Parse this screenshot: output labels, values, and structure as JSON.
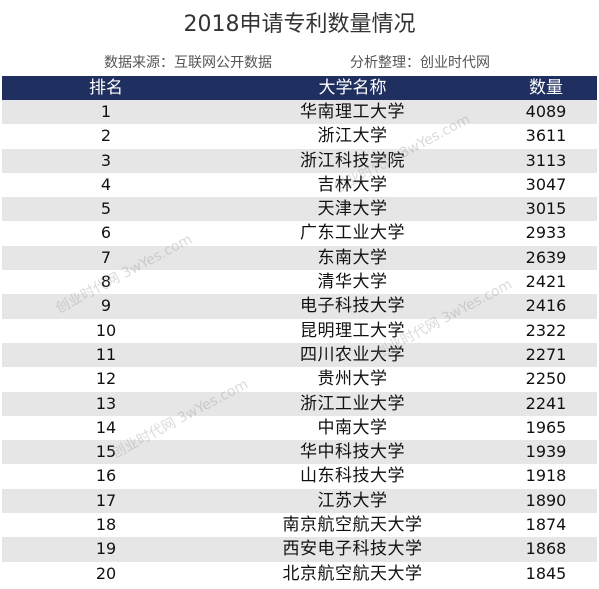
{
  "title": "2018申请专利数量情况",
  "source": "数据来源：互联网公开数据",
  "organizer": "分析整理：创业时代网",
  "watermark": "创业时代网 3wYes.com",
  "colors": {
    "header_bg": "#1f2f5f",
    "header_text": "#ffffff",
    "row_alt": "#e6e6e6"
  },
  "table": {
    "headers": [
      "排名",
      "大学名称",
      "数量"
    ],
    "rows": [
      {
        "rank": "1",
        "name": "华南理工大学",
        "count": "4089"
      },
      {
        "rank": "2",
        "name": "浙江大学",
        "count": "3611"
      },
      {
        "rank": "3",
        "name": "浙江科技学院",
        "count": "3113"
      },
      {
        "rank": "4",
        "name": "吉林大学",
        "count": "3047"
      },
      {
        "rank": "5",
        "name": "天津大学",
        "count": "3015"
      },
      {
        "rank": "6",
        "name": "广东工业大学",
        "count": "2933"
      },
      {
        "rank": "7",
        "name": "东南大学",
        "count": "2639"
      },
      {
        "rank": "8",
        "name": "清华大学",
        "count": "2421"
      },
      {
        "rank": "9",
        "name": "电子科技大学",
        "count": "2416"
      },
      {
        "rank": "10",
        "name": "昆明理工大学",
        "count": "2322"
      },
      {
        "rank": "11",
        "name": "四川农业大学",
        "count": "2271"
      },
      {
        "rank": "12",
        "name": "贵州大学",
        "count": "2250"
      },
      {
        "rank": "13",
        "name": "浙江工业大学",
        "count": "2241"
      },
      {
        "rank": "14",
        "name": "中南大学",
        "count": "1965"
      },
      {
        "rank": "15",
        "name": "华中科技大学",
        "count": "1939"
      },
      {
        "rank": "16",
        "name": "山东科技大学",
        "count": "1918"
      },
      {
        "rank": "17",
        "name": "江苏大学",
        "count": "1890"
      },
      {
        "rank": "18",
        "name": "南京航空航天大学",
        "count": "1874"
      },
      {
        "rank": "19",
        "name": "西安电子科技大学",
        "count": "1868"
      },
      {
        "rank": "20",
        "name": "北京航空航天大学",
        "count": "1845"
      }
    ]
  }
}
